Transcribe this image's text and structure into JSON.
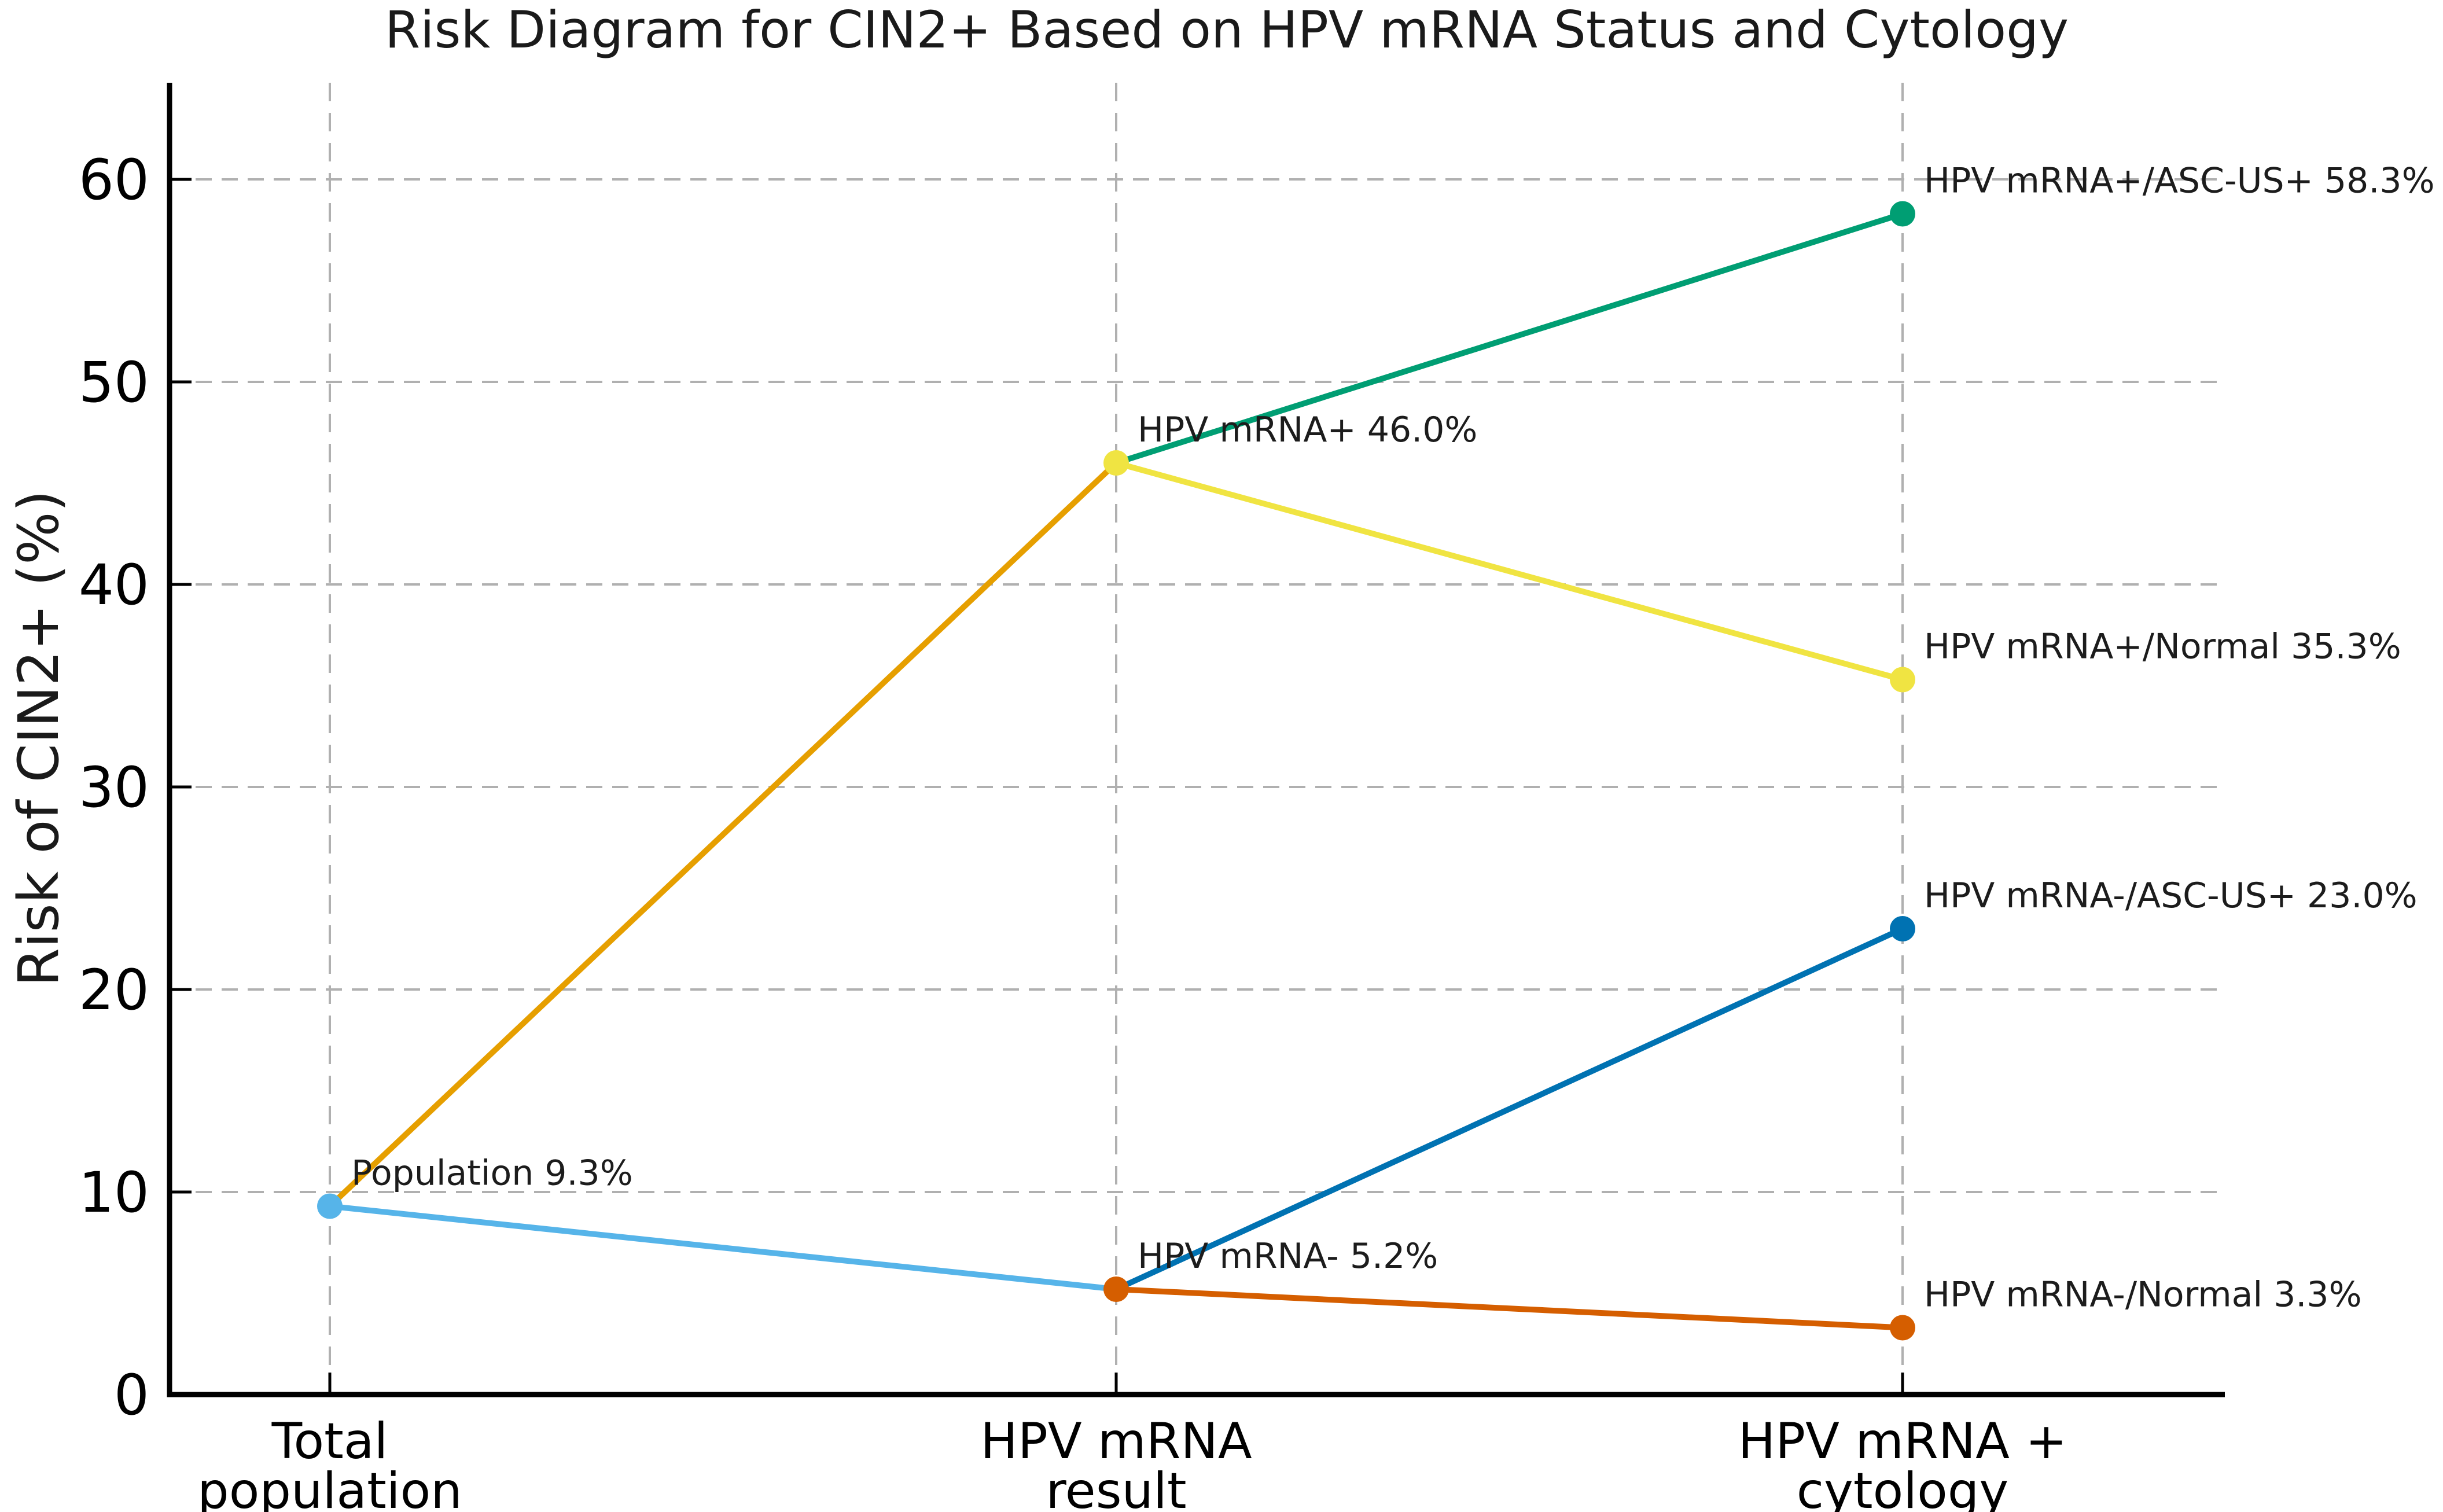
{
  "title": "Risk Diagram for CIN2+ Based on HPV mRNA Status and Cytology",
  "chart_data": {
    "type": "line",
    "title": "Risk Diagram for CIN2+ Based on HPV mRNA Status and Cytology",
    "xlabel": "",
    "ylabel": "Risk of CIN2+ (%)",
    "ylim": [
      0,
      64.8
    ],
    "yticks": [
      0,
      10,
      20,
      30,
      40,
      50,
      60
    ],
    "grid": true,
    "grid_style": "dashed",
    "legend_position": "none",
    "categories": [
      [
        "Total",
        "population"
      ],
      [
        "HPV mRNA",
        "result"
      ],
      [
        "HPV mRNA +",
        "cytology"
      ]
    ],
    "series": [
      {
        "name": "population-to-hpv-mrna-positive",
        "color": "#E69F00",
        "x": [
          0,
          1
        ],
        "values": [
          9.3,
          46.0
        ]
      },
      {
        "name": "population-to-hpv-mrna-negative",
        "color": "#56B4E9",
        "x": [
          0,
          1
        ],
        "values": [
          9.3,
          5.2
        ]
      },
      {
        "name": "hpv-mrna-positive-to-ascus-positive",
        "color": "#009E73",
        "x": [
          1,
          2
        ],
        "values": [
          46.0,
          58.3
        ]
      },
      {
        "name": "hpv-mrna-positive-to-normal",
        "color": "#F0E442",
        "x": [
          1,
          2
        ],
        "values": [
          46.0,
          35.3
        ]
      },
      {
        "name": "hpv-mrna-negative-to-ascus-positive",
        "color": "#0072B2",
        "x": [
          1,
          2
        ],
        "values": [
          5.2,
          23.0
        ]
      },
      {
        "name": "hpv-mrna-negative-to-normal",
        "color": "#D55E00",
        "x": [
          1,
          2
        ],
        "values": [
          5.2,
          3.3
        ]
      }
    ],
    "points": [
      {
        "name": "population",
        "label": "Population 9.3%",
        "x": 0,
        "value": 9.3,
        "color": "#56B4E9"
      },
      {
        "name": "hpv-mrna-positive",
        "label": "HPV mRNA+ 46.0%",
        "x": 1,
        "value": 46.0,
        "color": "#F0E442"
      },
      {
        "name": "hpv-mrna-negative",
        "label": "HPV mRNA- 5.2%",
        "x": 1,
        "value": 5.2,
        "color": "#D55E00"
      },
      {
        "name": "hpv-mrna-positive-ascus-positive",
        "label": "HPV mRNA+/ASC-US+ 58.3%",
        "x": 2,
        "value": 58.3,
        "color": "#009E73"
      },
      {
        "name": "hpv-mrna-positive-normal",
        "label": "HPV mRNA+/Normal 35.3%",
        "x": 2,
        "value": 35.3,
        "color": "#F0E442"
      },
      {
        "name": "hpv-mrna-negative-ascus-positive",
        "label": "HPV mRNA-/ASC-US+ 23.0%",
        "x": 2,
        "value": 23.0,
        "color": "#0072B2"
      },
      {
        "name": "hpv-mrna-negative-normal",
        "label": "HPV mRNA-/Normal 3.3%",
        "x": 2,
        "value": 3.3,
        "color": "#D55E00"
      }
    ],
    "colors": {
      "grid": "#b0b0b0",
      "spine": "#000000",
      "tick_label": "#000000",
      "annotation_text": "#1c1c1c",
      "title_text": "#1a1a1a",
      "background": "#ffffff"
    }
  }
}
